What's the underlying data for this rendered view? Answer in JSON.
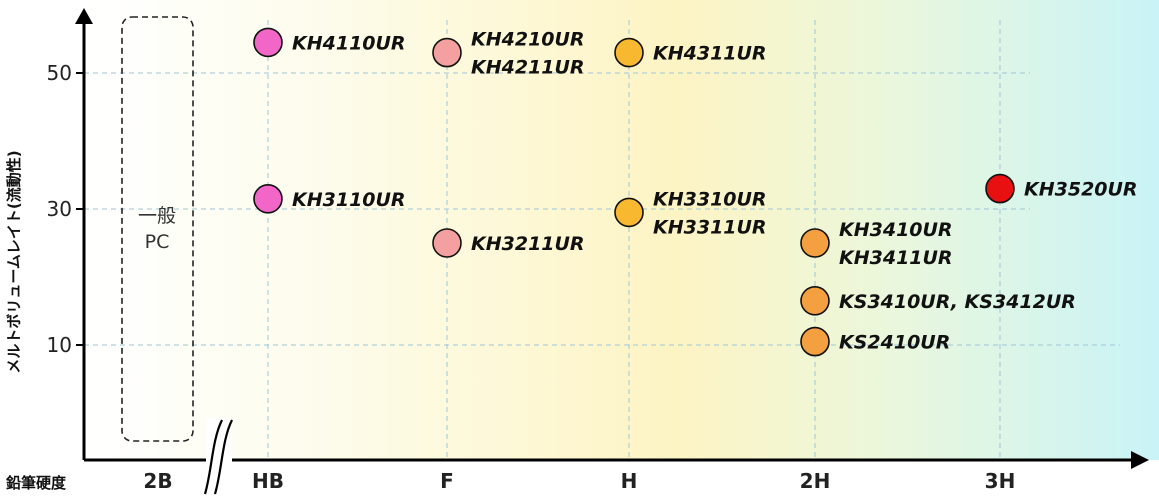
{
  "chart_data": {
    "type": "scatter",
    "title": "",
    "xlabel": "鉛筆硬度",
    "ylabel": "メルトボリュームレイト(流動性)",
    "categories": [
      "2B",
      "HB",
      "F",
      "H",
      "2H",
      "3H"
    ],
    "yticks": [
      10,
      30,
      50
    ],
    "ylim": [
      -5,
      60
    ],
    "grid": true,
    "reference_box": {
      "category": "2B",
      "label_lines": [
        "一般",
        "PC"
      ]
    },
    "points": [
      {
        "category": "HB",
        "y": 54.5,
        "labels": [
          "KH4110UR"
        ],
        "color": "#f266c8"
      },
      {
        "category": "HB",
        "y": 31.5,
        "labels": [
          "KH3110UR"
        ],
        "color": "#f266c8"
      },
      {
        "category": "F",
        "y": 53,
        "labels": [
          "KH4210UR",
          "KH4211UR"
        ],
        "color": "#f4a0a0"
      },
      {
        "category": "F",
        "y": 25,
        "labels": [
          "KH3211UR"
        ],
        "color": "#f4a0a0"
      },
      {
        "category": "H",
        "y": 53,
        "labels": [
          "KH4311UR"
        ],
        "color": "#f8b830"
      },
      {
        "category": "H",
        "y": 29.5,
        "labels": [
          "KH3310UR",
          "KH3311UR"
        ],
        "color": "#f8b830"
      },
      {
        "category": "2H",
        "y": 25,
        "labels": [
          "KH3410UR",
          "KH3411UR"
        ],
        "color": "#f5a040"
      },
      {
        "category": "2H",
        "y": 16.5,
        "labels": [
          "KS3410UR, KS3412UR"
        ],
        "color": "#f5a040"
      },
      {
        "category": "2H",
        "y": 10.5,
        "labels": [
          "KS2410UR"
        ],
        "color": "#f5a040"
      },
      {
        "category": "3H",
        "y": 33,
        "labels": [
          "KH3520UR"
        ],
        "color": "#e81010"
      }
    ]
  }
}
